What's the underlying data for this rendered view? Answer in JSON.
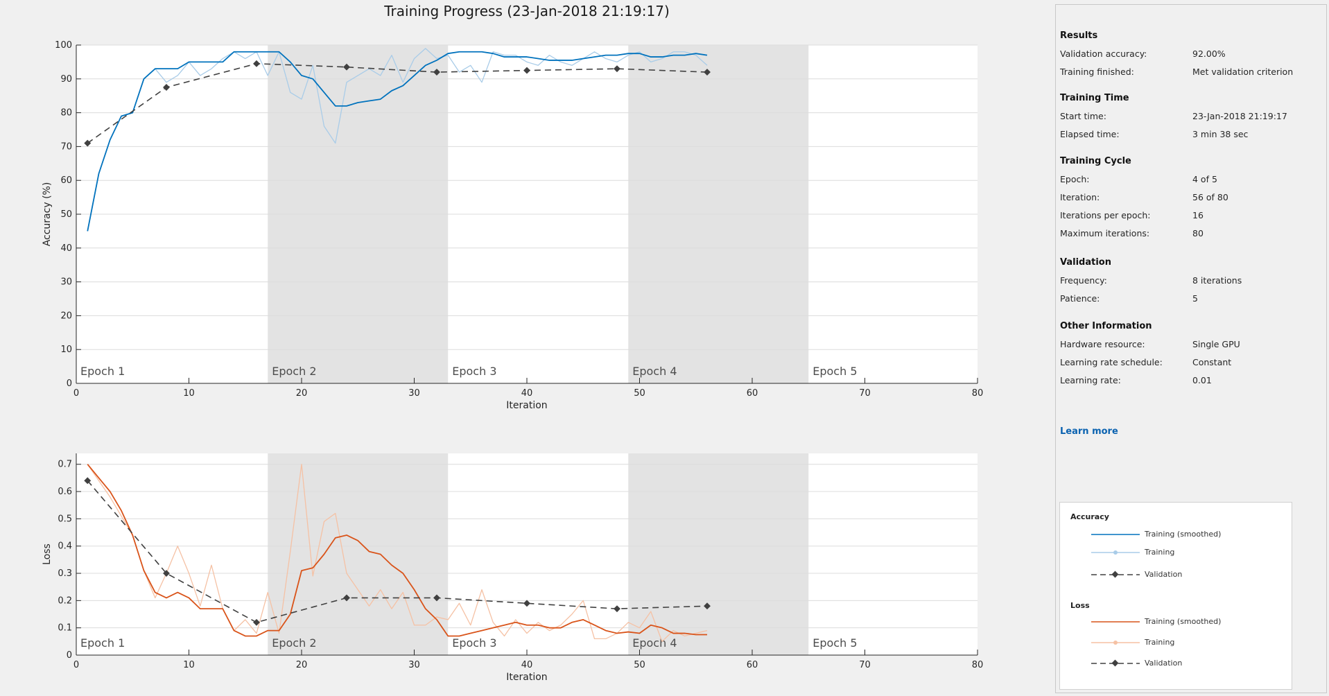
{
  "title": "Training Progress (23-Jan-2018 21:19:17)",
  "colors": {
    "accuracy_smoothed": "#0072bd",
    "accuracy_raw": "#a9cce8",
    "loss_smoothed": "#d95319",
    "loss_raw": "#f5c1a4",
    "validation": "#404040",
    "epoch_shade": "#e3e3e3",
    "link": "#0a62b0"
  },
  "results_panel": {
    "sections": [
      {
        "title": "Results",
        "rows": [
          {
            "label": "Validation accuracy:",
            "value": "92.00%"
          },
          {
            "label": "Training finished:",
            "value": "Met validation criterion"
          }
        ]
      },
      {
        "title": "Training Time",
        "rows": [
          {
            "label": "Start time:",
            "value": "23-Jan-2018 21:19:17"
          },
          {
            "label": "Elapsed time:",
            "value": "3 min 38 sec"
          }
        ]
      },
      {
        "title": "Training Cycle",
        "rows": [
          {
            "label": "Epoch:",
            "value": "4 of 5"
          },
          {
            "label": "Iteration:",
            "value": "56 of 80"
          },
          {
            "label": "Iterations per epoch:",
            "value": "16"
          },
          {
            "label": "Maximum iterations:",
            "value": "80"
          }
        ]
      },
      {
        "title": "Validation",
        "rows": [
          {
            "label": "Frequency:",
            "value": "8 iterations"
          },
          {
            "label": "Patience:",
            "value": "5"
          }
        ]
      },
      {
        "title": "Other Information",
        "rows": [
          {
            "label": "Hardware resource:",
            "value": "Single GPU"
          },
          {
            "label": "Learning rate schedule:",
            "value": "Constant"
          },
          {
            "label": "Learning rate:",
            "value": "0.01"
          }
        ]
      }
    ],
    "learn_more": "Learn more"
  },
  "legend": {
    "accuracy_title": "Accuracy",
    "loss_title": "Loss",
    "smoothed_label": "Training (smoothed)",
    "training_label": "Training",
    "validation_label": "Validation"
  },
  "chart_data": [
    {
      "type": "line",
      "name": "accuracy",
      "xlabel": "Iteration",
      "ylabel": "Accuracy (%)",
      "xlim": [
        0,
        80
      ],
      "ylim": [
        0,
        100
      ],
      "xticks": [
        0,
        10,
        20,
        30,
        40,
        50,
        60,
        70,
        80
      ],
      "yticks": [
        0,
        10,
        20,
        30,
        40,
        50,
        60,
        70,
        80,
        90,
        100
      ],
      "grid": true,
      "epochs": [
        {
          "label": "Epoch 1",
          "start": 0,
          "end": 17,
          "shaded": false
        },
        {
          "label": "Epoch 2",
          "start": 17,
          "end": 33,
          "shaded": true
        },
        {
          "label": "Epoch 3",
          "start": 33,
          "end": 49,
          "shaded": false
        },
        {
          "label": "Epoch 4",
          "start": 49,
          "end": 65,
          "shaded": true
        },
        {
          "label": "Epoch 5",
          "start": 65,
          "end": 80,
          "shaded": false
        }
      ],
      "series": [
        {
          "name": "Training",
          "style": "raw",
          "x": [
            1,
            2,
            3,
            4,
            5,
            6,
            7,
            8,
            9,
            10,
            11,
            12,
            13,
            14,
            15,
            16,
            17,
            18,
            19,
            20,
            21,
            22,
            23,
            24,
            25,
            26,
            27,
            28,
            29,
            30,
            31,
            32,
            33,
            34,
            35,
            36,
            37,
            38,
            39,
            40,
            41,
            42,
            43,
            44,
            45,
            46,
            47,
            48,
            49,
            50,
            51,
            52,
            53,
            54,
            55,
            56
          ],
          "y": [
            45,
            62,
            72,
            79,
            80,
            90,
            93,
            89,
            91,
            95,
            91,
            93,
            96,
            98,
            96,
            98,
            91,
            98,
            86,
            84,
            94,
            76,
            71,
            89,
            91,
            93,
            91,
            97,
            89,
            96,
            99,
            96,
            97,
            92,
            94,
            89,
            98,
            97,
            97,
            95,
            94,
            97,
            95,
            94,
            96,
            98,
            96,
            95,
            97,
            98,
            95,
            96,
            98,
            98,
            97,
            94
          ]
        },
        {
          "name": "Training (smoothed)",
          "style": "smoothed",
          "x": [
            1,
            2,
            3,
            4,
            5,
            6,
            7,
            8,
            9,
            10,
            11,
            12,
            13,
            14,
            15,
            16,
            17,
            18,
            19,
            20,
            21,
            22,
            23,
            24,
            25,
            26,
            27,
            28,
            29,
            30,
            31,
            32,
            33,
            34,
            35,
            36,
            37,
            38,
            39,
            40,
            41,
            42,
            43,
            44,
            45,
            46,
            47,
            48,
            49,
            50,
            51,
            52,
            53,
            54,
            55,
            56
          ],
          "y": [
            45,
            62,
            72,
            79,
            80,
            90,
            93,
            93,
            93,
            95,
            95,
            95,
            95,
            98,
            98,
            98,
            98,
            98,
            95,
            91,
            90,
            86,
            82,
            82,
            83,
            83.5,
            84,
            86.5,
            88,
            91,
            94,
            95.5,
            97.5,
            98,
            98,
            98,
            97.5,
            96.5,
            96.5,
            96.5,
            96,
            95.5,
            95.5,
            95.5,
            96,
            96.5,
            97,
            97,
            97.5,
            97.5,
            96.5,
            96.5,
            97,
            97,
            97.5,
            97
          ]
        },
        {
          "name": "Validation",
          "style": "validation",
          "x": [
            1,
            8,
            16,
            24,
            32,
            40,
            48,
            56
          ],
          "y": [
            71,
            87.5,
            94.5,
            93.5,
            92,
            92.5,
            93,
            92
          ]
        }
      ]
    },
    {
      "type": "line",
      "name": "loss",
      "xlabel": "Iteration",
      "ylabel": "Loss",
      "xlim": [
        0,
        80
      ],
      "ylim": [
        0,
        0.74
      ],
      "xticks": [
        0,
        10,
        20,
        30,
        40,
        50,
        60,
        70,
        80
      ],
      "yticks": [
        0,
        0.1,
        0.2,
        0.3,
        0.4,
        0.5,
        0.6,
        0.7
      ],
      "grid": true,
      "epochs": [
        {
          "label": "Epoch 1",
          "start": 0,
          "end": 17,
          "shaded": false
        },
        {
          "label": "Epoch 2",
          "start": 17,
          "end": 33,
          "shaded": true
        },
        {
          "label": "Epoch 3",
          "start": 33,
          "end": 49,
          "shaded": false
        },
        {
          "label": "Epoch 4",
          "start": 49,
          "end": 65,
          "shaded": true
        },
        {
          "label": "Epoch 5",
          "start": 65,
          "end": 80,
          "shaded": false
        }
      ],
      "series": [
        {
          "name": "Training",
          "style": "raw",
          "x": [
            1,
            2,
            3,
            4,
            5,
            6,
            7,
            8,
            9,
            10,
            11,
            12,
            13,
            14,
            15,
            16,
            17,
            18,
            19,
            20,
            21,
            22,
            23,
            24,
            25,
            26,
            27,
            28,
            29,
            30,
            31,
            32,
            33,
            34,
            35,
            36,
            37,
            38,
            39,
            40,
            41,
            42,
            43,
            44,
            45,
            46,
            47,
            48,
            49,
            50,
            51,
            52,
            53,
            54,
            55,
            56
          ],
          "y": [
            0.7,
            0.64,
            0.58,
            0.51,
            0.44,
            0.31,
            0.21,
            0.3,
            0.4,
            0.3,
            0.18,
            0.33,
            0.17,
            0.09,
            0.13,
            0.08,
            0.23,
            0.08,
            0.38,
            0.7,
            0.29,
            0.49,
            0.52,
            0.3,
            0.24,
            0.18,
            0.24,
            0.17,
            0.23,
            0.11,
            0.11,
            0.14,
            0.13,
            0.19,
            0.11,
            0.24,
            0.12,
            0.07,
            0.13,
            0.08,
            0.12,
            0.09,
            0.11,
            0.15,
            0.2,
            0.06,
            0.06,
            0.08,
            0.12,
            0.1,
            0.16,
            0.05,
            0.09,
            0.07,
            0.08,
            0.09
          ]
        },
        {
          "name": "Training (smoothed)",
          "style": "smoothed",
          "x": [
            1,
            2,
            3,
            4,
            5,
            6,
            7,
            8,
            9,
            10,
            11,
            12,
            13,
            14,
            15,
            16,
            17,
            18,
            19,
            20,
            21,
            22,
            23,
            24,
            25,
            26,
            27,
            28,
            29,
            30,
            31,
            32,
            33,
            34,
            35,
            36,
            37,
            38,
            39,
            40,
            41,
            42,
            43,
            44,
            45,
            46,
            47,
            48,
            49,
            50,
            51,
            52,
            53,
            54,
            55,
            56
          ],
          "y": [
            0.7,
            0.65,
            0.6,
            0.53,
            0.44,
            0.31,
            0.23,
            0.21,
            0.23,
            0.21,
            0.17,
            0.17,
            0.17,
            0.09,
            0.07,
            0.07,
            0.09,
            0.09,
            0.15,
            0.31,
            0.32,
            0.37,
            0.43,
            0.44,
            0.42,
            0.38,
            0.37,
            0.33,
            0.3,
            0.24,
            0.17,
            0.13,
            0.07,
            0.07,
            0.08,
            0.09,
            0.1,
            0.11,
            0.12,
            0.11,
            0.11,
            0.1,
            0.1,
            0.12,
            0.13,
            0.11,
            0.09,
            0.08,
            0.085,
            0.08,
            0.11,
            0.1,
            0.08,
            0.08,
            0.075,
            0.075
          ]
        },
        {
          "name": "Validation",
          "style": "validation",
          "x": [
            1,
            8,
            16,
            24,
            32,
            40,
            48,
            56
          ],
          "y": [
            0.64,
            0.3,
            0.12,
            0.21,
            0.21,
            0.19,
            0.17,
            0.18
          ]
        }
      ]
    }
  ]
}
